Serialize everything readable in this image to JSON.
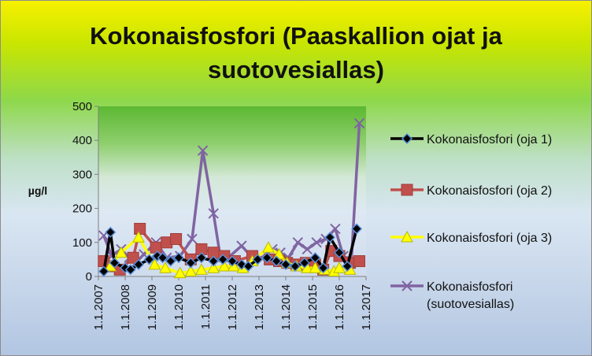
{
  "chart_data": {
    "type": "line",
    "title_lines": [
      "Kokonaisfosfori (Paaskallion ojat ja",
      "suotovesiallas)"
    ],
    "ylabel": "µg/l",
    "xlabel": "",
    "ylim": [
      0,
      500
    ],
    "y_ticks": [
      0,
      100,
      200,
      300,
      400,
      500
    ],
    "x_ticks": [
      "1.1.2007",
      "1.1.2008",
      "1.1.2009",
      "1.1.2010",
      "1.1.2011",
      "1.1.2012",
      "1.1.2013",
      "1.1.2014",
      "1.1.2015",
      "1.1.2016",
      "1.1.2017"
    ],
    "xlim": [
      2007,
      2017
    ],
    "grid": false,
    "legend_position": "right",
    "series": [
      {
        "name": "Kokonaisfosfori (oja 1)",
        "color": "#000000",
        "marker": "diamond",
        "x": [
          2007.2,
          2007.45,
          2007.6,
          2008.0,
          2008.2,
          2008.5,
          2008.9,
          2009.2,
          2009.4,
          2009.7,
          2010.0,
          2010.45,
          2010.85,
          2011.3,
          2011.65,
          2012.0,
          2012.35,
          2012.6,
          2012.95,
          2013.3,
          2013.65,
          2014.0,
          2014.35,
          2014.7,
          2015.1,
          2015.4,
          2015.65,
          2016.0,
          2016.3,
          2016.65
        ],
        "y": [
          15,
          130,
          40,
          25,
          20,
          35,
          50,
          60,
          55,
          45,
          55,
          40,
          55,
          45,
          50,
          45,
          35,
          30,
          50,
          55,
          45,
          35,
          30,
          40,
          55,
          25,
          115,
          70,
          30,
          140
        ]
      },
      {
        "name": "Kokonaisfosfori (oja 2)",
        "color": "#c0504d",
        "marker": "square",
        "x": [
          2007.2,
          2007.45,
          2007.8,
          2008.3,
          2008.55,
          2009.15,
          2009.55,
          2009.9,
          2010.45,
          2010.85,
          2011.3,
          2011.7,
          2012.1,
          2012.75,
          2013.4,
          2013.75,
          2014.05,
          2014.4,
          2014.75,
          2015.1,
          2015.4,
          2015.7,
          2016.0,
          2016.4,
          2016.75
        ],
        "y": [
          45,
          30,
          20,
          55,
          140,
          85,
          100,
          110,
          50,
          80,
          70,
          60,
          45,
          60,
          50,
          45,
          40,
          35,
          40,
          35,
          20,
          75,
          60,
          40,
          45
        ]
      },
      {
        "name": "Kokonaisfosfori (oja 3)",
        "color": "#ffff00",
        "marker": "triangle",
        "x": [
          2007.45,
          2007.85,
          2008.5,
          2009.1,
          2009.5,
          2010.05,
          2010.45,
          2010.85,
          2011.3,
          2011.7,
          2012.05,
          2012.4,
          2012.75,
          2013.35,
          2013.75,
          2014.05,
          2014.4,
          2014.8,
          2015.1,
          2015.45,
          2015.8,
          2016.0,
          2016.4
        ],
        "y": [
          30,
          70,
          115,
          35,
          25,
          10,
          15,
          20,
          25,
          30,
          30,
          25,
          45,
          85,
          65,
          40,
          30,
          25,
          25,
          20,
          15,
          25,
          20
        ]
      },
      {
        "name": "Kokonaisfosfori (suotovesiallas)",
        "color": "#8064a2",
        "marker": "x",
        "x": [
          2007.2,
          2007.5,
          2007.85,
          2008.15,
          2008.45,
          2008.7,
          2009.15,
          2009.55,
          2010.05,
          2010.5,
          2010.9,
          2011.3,
          2011.55,
          2011.85,
          2012.35,
          2012.75,
          2013.1,
          2013.5,
          2013.8,
          2014.1,
          2014.45,
          2014.8,
          2015.15,
          2015.5,
          2015.85,
          2016.15,
          2016.45,
          2016.75
        ],
        "y": [
          120,
          60,
          80,
          55,
          45,
          65,
          100,
          55,
          60,
          110,
          370,
          185,
          60,
          55,
          90,
          55,
          55,
          80,
          70,
          55,
          100,
          80,
          100,
          110,
          140,
          60,
          45,
          450
        ]
      }
    ]
  }
}
